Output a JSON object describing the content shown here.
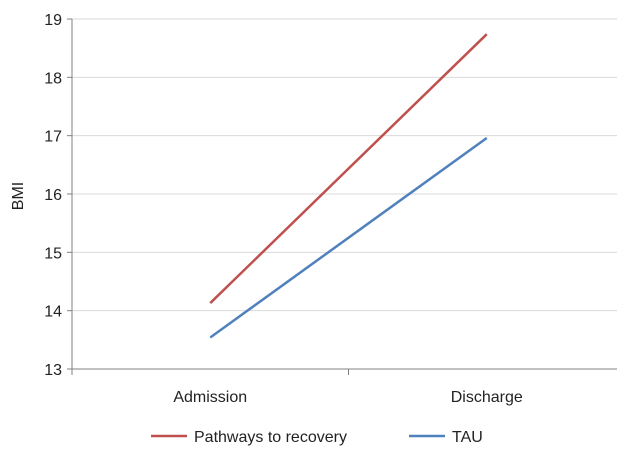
{
  "chart_data": {
    "type": "line",
    "title": "",
    "xlabel": "",
    "ylabel": "BMI",
    "categories": [
      "Admission",
      "Discharge"
    ],
    "ylim": [
      13,
      19
    ],
    "yticks": [
      13,
      14,
      15,
      16,
      17,
      18,
      19
    ],
    "grid": true,
    "legend_position": "bottom",
    "series": [
      {
        "name": "Pathways to recovery",
        "values": [
          14.13,
          18.74
        ],
        "color": "#c0504d"
      },
      {
        "name": "TAU",
        "values": [
          13.54,
          16.96
        ],
        "color": "#4f81bd"
      }
    ]
  }
}
